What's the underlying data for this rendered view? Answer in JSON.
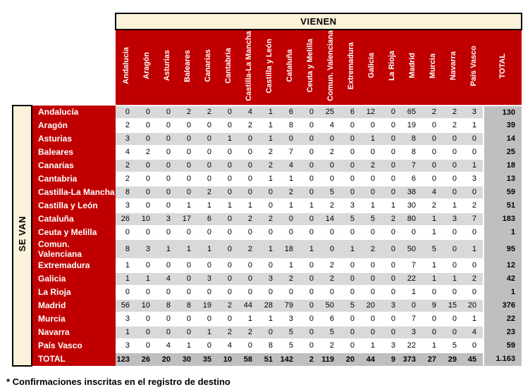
{
  "chart_data": {
    "type": "table",
    "title": "VIENEN",
    "row_axis_label": "SE VAN",
    "footnote": "* Confirmaciones inscritas en el registro de destino",
    "columns": [
      "Andalucía",
      "Aragón",
      "Asturias",
      "Baleares",
      "Canarias",
      "Cantabria",
      "Castilla-La Mancha",
      "Castilla y León",
      "Cataluña",
      "Ceuta y Melilla",
      "Comun. Valenciana",
      "Extremadura",
      "Galicia",
      "La Rioja",
      "Madrid",
      "Murcia",
      "Navarra",
      "País Vasco",
      "TOTAL"
    ],
    "rows": [
      {
        "label": "Andalucía",
        "values": [
          0,
          0,
          0,
          2,
          2,
          0,
          4,
          1,
          6,
          0,
          25,
          6,
          12,
          0,
          65,
          2,
          2,
          3
        ],
        "total": 130
      },
      {
        "label": "Aragón",
        "values": [
          2,
          0,
          0,
          0,
          0,
          0,
          2,
          1,
          8,
          0,
          4,
          0,
          0,
          0,
          19,
          0,
          2,
          1
        ],
        "total": 39
      },
      {
        "label": "Asturias",
        "values": [
          3,
          0,
          0,
          0,
          0,
          1,
          0,
          1,
          0,
          0,
          0,
          0,
          1,
          0,
          8,
          0,
          0,
          0
        ],
        "total": 14
      },
      {
        "label": "Baleares",
        "values": [
          4,
          2,
          0,
          0,
          0,
          0,
          0,
          2,
          7,
          0,
          2,
          0,
          0,
          0,
          8,
          0,
          0,
          0
        ],
        "total": 25
      },
      {
        "label": "Canarias",
        "values": [
          2,
          0,
          0,
          0,
          0,
          0,
          0,
          2,
          4,
          0,
          0,
          0,
          2,
          0,
          7,
          0,
          0,
          1
        ],
        "total": 18
      },
      {
        "label": "Cantabria",
        "values": [
          2,
          0,
          0,
          0,
          0,
          0,
          0,
          1,
          1,
          0,
          0,
          0,
          0,
          0,
          6,
          0,
          0,
          3
        ],
        "total": 13
      },
      {
        "label": "Castilla-La Mancha",
        "values": [
          8,
          0,
          0,
          0,
          2,
          0,
          0,
          0,
          2,
          0,
          5,
          0,
          0,
          0,
          38,
          4,
          0,
          0
        ],
        "total": 59
      },
      {
        "label": "Castilla y León",
        "values": [
          3,
          0,
          0,
          1,
          1,
          1,
          1,
          0,
          1,
          1,
          2,
          3,
          1,
          1,
          30,
          2,
          1,
          2
        ],
        "total": 51
      },
      {
        "label": "Cataluña",
        "values": [
          26,
          10,
          3,
          17,
          6,
          0,
          2,
          2,
          0,
          0,
          14,
          5,
          5,
          2,
          80,
          1,
          3,
          7
        ],
        "total": 183
      },
      {
        "label": "Ceuta y Melilla",
        "values": [
          0,
          0,
          0,
          0,
          0,
          0,
          0,
          0,
          0,
          0,
          0,
          0,
          0,
          0,
          0,
          1,
          0,
          0
        ],
        "total": 1
      },
      {
        "label": "Comun. Valenciana",
        "values": [
          8,
          3,
          1,
          1,
          1,
          0,
          2,
          1,
          18,
          1,
          0,
          1,
          2,
          0,
          50,
          5,
          0,
          1
        ],
        "total": 95
      },
      {
        "label": "Extremadura",
        "values": [
          1,
          0,
          0,
          0,
          0,
          0,
          0,
          0,
          1,
          0,
          2,
          0,
          0,
          0,
          7,
          1,
          0,
          0
        ],
        "total": 12
      },
      {
        "label": "Galicia",
        "values": [
          1,
          1,
          4,
          0,
          3,
          0,
          0,
          3,
          2,
          0,
          2,
          0,
          0,
          0,
          22,
          1,
          1,
          2
        ],
        "total": 42
      },
      {
        "label": "La Rioja",
        "values": [
          0,
          0,
          0,
          0,
          0,
          0,
          0,
          0,
          0,
          0,
          0,
          0,
          0,
          0,
          1,
          0,
          0,
          0
        ],
        "total": 1
      },
      {
        "label": "Madrid",
        "values": [
          56,
          10,
          8,
          8,
          19,
          2,
          44,
          28,
          79,
          0,
          50,
          5,
          20,
          3,
          0,
          9,
          15,
          20
        ],
        "total": 376
      },
      {
        "label": "Murcia",
        "values": [
          3,
          0,
          0,
          0,
          0,
          0,
          1,
          1,
          3,
          0,
          6,
          0,
          0,
          0,
          7,
          0,
          0,
          1
        ],
        "total": 22
      },
      {
        "label": "Navarra",
        "values": [
          1,
          0,
          0,
          0,
          1,
          2,
          2,
          0,
          5,
          0,
          5,
          0,
          0,
          0,
          3,
          0,
          0,
          4
        ],
        "total": 23
      },
      {
        "label": "País Vasco",
        "values": [
          3,
          0,
          4,
          1,
          0,
          4,
          0,
          8,
          5,
          0,
          2,
          0,
          1,
          3,
          22,
          1,
          5,
          0
        ],
        "total": 59
      }
    ],
    "total_row": {
      "label": "TOTAL",
      "values": [
        123,
        26,
        20,
        30,
        35,
        10,
        58,
        51,
        142,
        2,
        119,
        20,
        44,
        9,
        373,
        27,
        29,
        45
      ],
      "total": "1.163"
    },
    "colors": {
      "header_red": "#C00000",
      "cream": "#FBF2D9",
      "band_gray": "#D9D9D9",
      "total_gray": "#BFBFBF"
    }
  }
}
